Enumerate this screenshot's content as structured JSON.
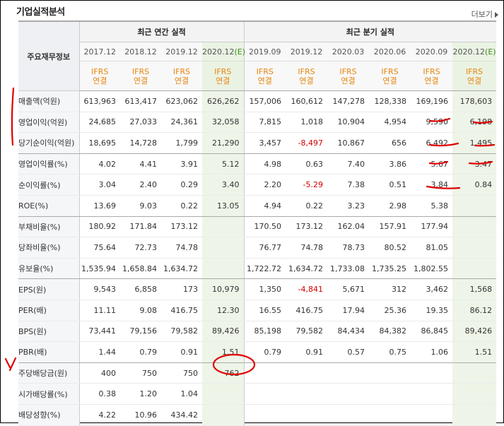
{
  "header": {
    "title": "기업실적분석",
    "more_label": "더보기"
  },
  "table": {
    "label_header": "주요재무정보",
    "annual_group": "최근 연간 실적",
    "quarter_group": "최근 분기 실적",
    "annual_periods": [
      {
        "period": "2017.12",
        "est": ""
      },
      {
        "period": "2018.12",
        "est": ""
      },
      {
        "period": "2019.12",
        "est": ""
      },
      {
        "period": "2020.12",
        "est": "(E)"
      }
    ],
    "quarter_periods": [
      {
        "period": "2019.09",
        "est": ""
      },
      {
        "period": "2019.12",
        "est": ""
      },
      {
        "period": "2020.03",
        "est": ""
      },
      {
        "period": "2020.06",
        "est": ""
      },
      {
        "period": "2020.09",
        "est": ""
      },
      {
        "period": "2020.12",
        "est": "(E)"
      }
    ],
    "standard_line1": "IFRS",
    "standard_line2": "연결",
    "rows": [
      {
        "label": "매출액(억원)",
        "values": [
          "613,963",
          "613,417",
          "623,062",
          "626,262",
          "157,006",
          "160,612",
          "147,278",
          "128,338",
          "169,196",
          "178,603"
        ]
      },
      {
        "label": "영업이익(억원)",
        "values": [
          "24,685",
          "27,033",
          "24,361",
          "32,058",
          "7,815",
          "1,018",
          "10,904",
          "4,954",
          "9,590",
          "6,198"
        ]
      },
      {
        "label": "당기순이익(억원)",
        "values": [
          "18,695",
          "14,728",
          "1,799",
          "21,290",
          "3,457",
          "-8,497",
          "10,867",
          "656",
          "6,492",
          "1,495"
        ]
      },
      {
        "label": "영업이익률(%)",
        "values": [
          "4.02",
          "4.41",
          "3.91",
          "5.12",
          "4.98",
          "0.63",
          "7.40",
          "3.86",
          "5.67",
          "3.47"
        ]
      },
      {
        "label": "순이익률(%)",
        "values": [
          "3.04",
          "2.40",
          "0.29",
          "3.40",
          "2.20",
          "-5.29",
          "7.38",
          "0.51",
          "3.84",
          "0.84"
        ]
      },
      {
        "label": "ROE(%)",
        "values": [
          "13.69",
          "9.03",
          "0.22",
          "13.05",
          "4.94",
          "0.22",
          "3.23",
          "2.98",
          "5.38",
          ""
        ]
      },
      {
        "label": "부채비율(%)",
        "values": [
          "180.92",
          "171.84",
          "173.12",
          "",
          "170.50",
          "173.12",
          "162.04",
          "157.91",
          "177.94",
          ""
        ]
      },
      {
        "label": "당좌비율(%)",
        "values": [
          "75.64",
          "72.73",
          "74.78",
          "",
          "76.77",
          "74.78",
          "78.73",
          "80.52",
          "81.05",
          ""
        ]
      },
      {
        "label": "유보율(%)",
        "values": [
          "1,535.94",
          "1,658.84",
          "1,634.72",
          "",
          "1,722.72",
          "1,634.72",
          "1,733.08",
          "1,735.25",
          "1,802.55",
          ""
        ]
      },
      {
        "label": "EPS(원)",
        "values": [
          "9,543",
          "6,858",
          "173",
          "10,979",
          "1,350",
          "-4,841",
          "5,671",
          "312",
          "3,462",
          "1,568"
        ]
      },
      {
        "label": "PER(배)",
        "values": [
          "11.11",
          "9.08",
          "416.75",
          "12.30",
          "16.55",
          "416.75",
          "17.94",
          "25.36",
          "19.35",
          "86.12"
        ]
      },
      {
        "label": "BPS(원)",
        "values": [
          "73,441",
          "79,156",
          "79,582",
          "89,426",
          "85,198",
          "79,582",
          "84,434",
          "84,382",
          "86,845",
          "89,426"
        ]
      },
      {
        "label": "PBR(배)",
        "values": [
          "1.44",
          "0.79",
          "0.91",
          "1.51",
          "0.79",
          "0.91",
          "0.57",
          "0.75",
          "1.06",
          "1.51"
        ]
      },
      {
        "label": "주당배당금(원)",
        "values": [
          "400",
          "750",
          "750",
          "762",
          "",
          "",
          "",
          "",
          "",
          ""
        ]
      },
      {
        "label": "시가배당률(%)",
        "values": [
          "0.38",
          "1.20",
          "1.04",
          "",
          "",
          "",
          "",
          "",
          "",
          ""
        ]
      },
      {
        "label": "배당성향(%)",
        "values": [
          "4.22",
          "10.96",
          "434.42",
          "",
          "",
          "",
          "",
          "",
          "",
          ""
        ]
      }
    ]
  },
  "annotation_color": "#e00000"
}
